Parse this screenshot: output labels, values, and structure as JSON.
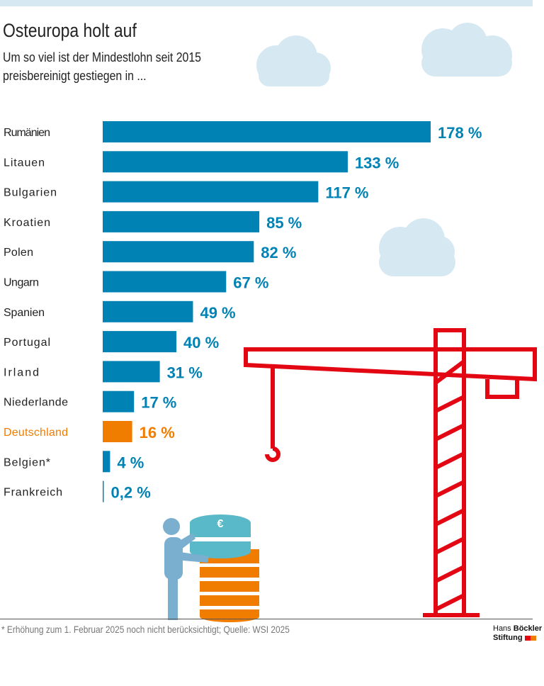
{
  "title": "Osteuropa holt auf",
  "subtitle": "Um so viel ist der Mindestlohn seit 2015 preisbereinigt gestiegen in ...",
  "footnote": "* Erhöhung zum 1. Februar 2025 noch nicht berücksichtigt; Quelle: WSI 2025",
  "logo": {
    "line1a": "Hans",
    "line1b": "Böckler",
    "line2": "Stiftung"
  },
  "colors": {
    "bar": "#0082b4",
    "highlight": "#f07d00",
    "crane": "#e30613",
    "cloud": "#d6e9f2",
    "figure": "#7aafcf",
    "coin_top": "#5ab9c8"
  },
  "chart_data": {
    "type": "bar",
    "orientation": "horizontal",
    "categories": [
      "Rumänien",
      "Litauen",
      "Bulgarien",
      "Kroatien",
      "Polen",
      "Ungarn",
      "Spanien",
      "Portugal",
      "Irland",
      "Niederlande",
      "Deutschland",
      "Belgien*",
      "Frankreich"
    ],
    "values": [
      178,
      133,
      117,
      85,
      82,
      67,
      49,
      40,
      31,
      17,
      16,
      4,
      0.2
    ],
    "labels": [
      "178 %",
      "133 %",
      "117 %",
      "85 %",
      "82 %",
      "67 %",
      "49 %",
      "40 %",
      "31 %",
      "17 %",
      "16 %",
      "4 %",
      "0,2 %"
    ],
    "highlight": "Deutschland",
    "unit": "%"
  }
}
